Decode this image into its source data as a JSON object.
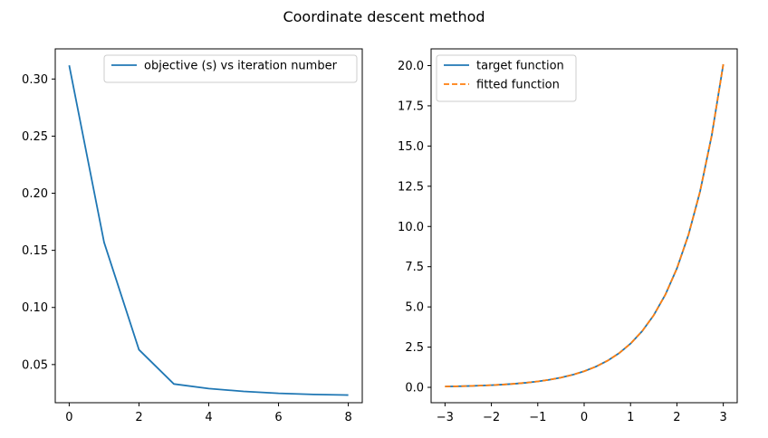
{
  "figure": {
    "suptitle": "Coordinate descent method"
  },
  "chart_data": [
    {
      "type": "line",
      "title": "",
      "xlabel": "",
      "ylabel": "",
      "xlim": [
        -0.4,
        8.4
      ],
      "ylim": [
        0.0166,
        0.3264
      ],
      "xticks": [
        0,
        2,
        4,
        6,
        8
      ],
      "xtick_labels": [
        "0",
        "2",
        "4",
        "6",
        "8"
      ],
      "yticks": [
        0.05,
        0.1,
        0.15,
        0.2,
        0.25,
        0.3
      ],
      "ytick_labels": [
        "0.05",
        "0.10",
        "0.15",
        "0.20",
        "0.25",
        "0.30"
      ],
      "grid": false,
      "legend_position": "upper right",
      "series": [
        {
          "name": "objective (s) vs iteration number",
          "color": "#1f77b4",
          "style": "solid",
          "x": [
            0,
            1,
            2,
            3,
            4,
            5,
            6,
            7,
            8
          ],
          "y": [
            0.312,
            0.157,
            0.063,
            0.033,
            0.029,
            0.0265,
            0.0248,
            0.0238,
            0.0233
          ]
        }
      ]
    },
    {
      "type": "line",
      "title": "",
      "xlabel": "",
      "ylabel": "",
      "xlim": [
        -3.3,
        3.3
      ],
      "ylim": [
        -0.955,
        21.04
      ],
      "xticks": [
        -3,
        -2,
        -1,
        0,
        1,
        2,
        3
      ],
      "xtick_labels": [
        "−3",
        "−2",
        "−1",
        "0",
        "1",
        "2",
        "3"
      ],
      "yticks": [
        0.0,
        2.5,
        5.0,
        7.5,
        10.0,
        12.5,
        15.0,
        17.5,
        20.0
      ],
      "ytick_labels": [
        "0.0",
        "2.5",
        "5.0",
        "7.5",
        "10.0",
        "12.5",
        "15.0",
        "17.5",
        "20.0"
      ],
      "grid": false,
      "legend_position": "upper left",
      "series": [
        {
          "name": "target function",
          "color": "#1f77b4",
          "style": "solid",
          "x": [
            -3.0,
            -2.75,
            -2.5,
            -2.25,
            -2.0,
            -1.75,
            -1.5,
            -1.25,
            -1.0,
            -0.75,
            -0.5,
            -0.25,
            0.0,
            0.25,
            0.5,
            0.75,
            1.0,
            1.25,
            1.5,
            1.75,
            2.0,
            2.25,
            2.5,
            2.75,
            3.0
          ],
          "y": [
            0.05,
            0.064,
            0.082,
            0.105,
            0.135,
            0.174,
            0.223,
            0.287,
            0.368,
            0.472,
            0.607,
            0.779,
            1.0,
            1.284,
            1.649,
            2.117,
            2.718,
            3.49,
            4.482,
            5.755,
            7.389,
            9.488,
            12.182,
            15.643,
            20.086
          ]
        },
        {
          "name": "fitted function",
          "color": "#ff7f0e",
          "style": "dashed",
          "x": [
            -3.0,
            -2.75,
            -2.5,
            -2.25,
            -2.0,
            -1.75,
            -1.5,
            -1.25,
            -1.0,
            -0.75,
            -0.5,
            -0.25,
            0.0,
            0.25,
            0.5,
            0.75,
            1.0,
            1.25,
            1.5,
            1.75,
            2.0,
            2.25,
            2.5,
            2.75,
            3.0
          ],
          "y": [
            0.05,
            0.064,
            0.082,
            0.105,
            0.135,
            0.174,
            0.223,
            0.287,
            0.368,
            0.472,
            0.607,
            0.779,
            1.0,
            1.284,
            1.649,
            2.117,
            2.718,
            3.49,
            4.482,
            5.755,
            7.389,
            9.488,
            12.182,
            15.643,
            20.086
          ]
        }
      ]
    }
  ]
}
